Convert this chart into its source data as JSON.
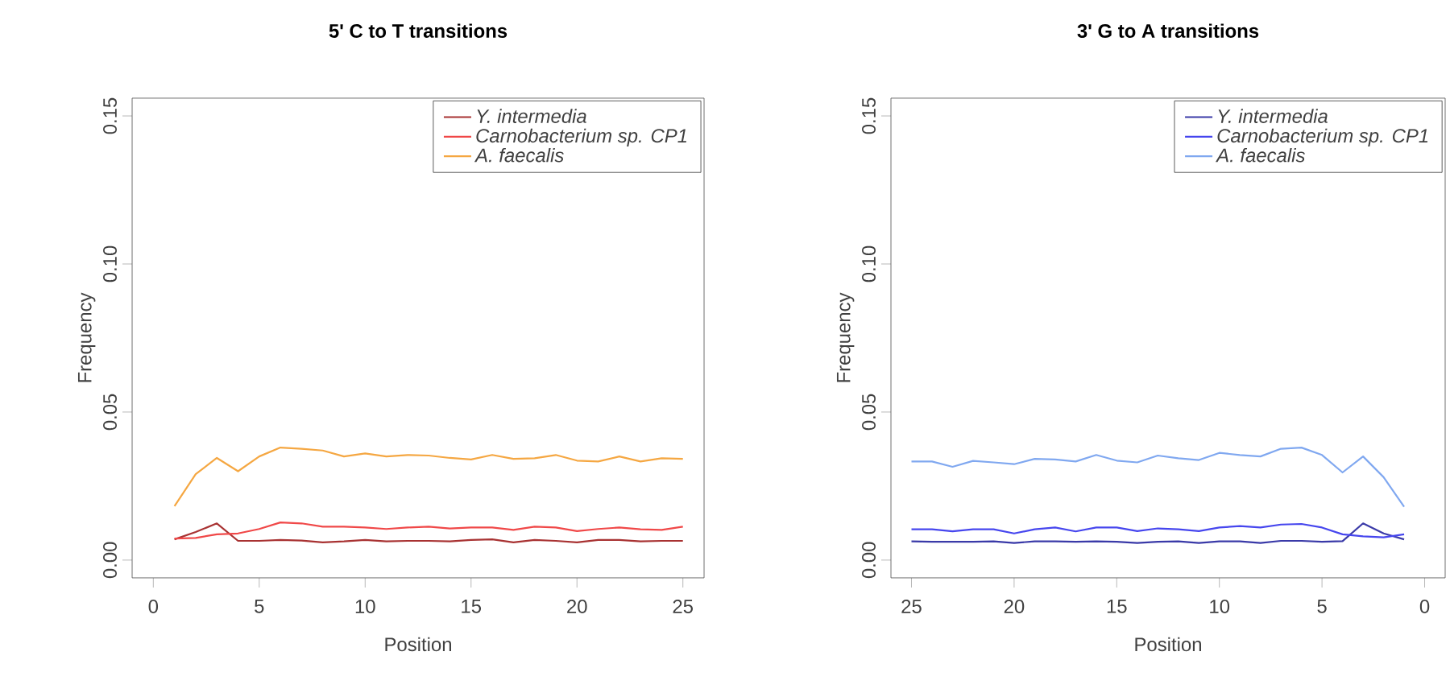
{
  "chart_data": [
    {
      "type": "line",
      "title": "5' C to T transitions",
      "xlabel": "Position",
      "ylabel": "Frequency",
      "x": [
        1,
        2,
        3,
        4,
        5,
        6,
        7,
        8,
        9,
        10,
        11,
        12,
        13,
        14,
        15,
        16,
        17,
        18,
        19,
        20,
        21,
        22,
        23,
        24,
        25
      ],
      "series": [
        {
          "name": "Y. intermedia",
          "color": "#a83232",
          "values": [
            0.007,
            0.0095,
            0.0124,
            0.0065,
            0.0065,
            0.0068,
            0.0066,
            0.006,
            0.0063,
            0.0068,
            0.0063,
            0.0065,
            0.0065,
            0.0063,
            0.0068,
            0.007,
            0.006,
            0.0068,
            0.0065,
            0.006,
            0.0068,
            0.0068,
            0.0063,
            0.0065,
            0.0065
          ]
        },
        {
          "name": "Carnobacterium sp. CP1",
          "color": "#f04848",
          "values": [
            0.0073,
            0.0075,
            0.0087,
            0.009,
            0.0105,
            0.0127,
            0.0124,
            0.0113,
            0.0113,
            0.011,
            0.0105,
            0.011,
            0.0113,
            0.0107,
            0.011,
            0.011,
            0.0102,
            0.0113,
            0.011,
            0.0098,
            0.0105,
            0.011,
            0.0104,
            0.0102,
            0.0113
          ]
        },
        {
          "name": "A. faecalis",
          "color": "#f5a742",
          "values": [
            0.0182,
            0.029,
            0.0345,
            0.03,
            0.035,
            0.038,
            0.0376,
            0.037,
            0.035,
            0.036,
            0.035,
            0.0355,
            0.0353,
            0.0345,
            0.034,
            0.0355,
            0.0342,
            0.0344,
            0.0355,
            0.0336,
            0.0333,
            0.035,
            0.0333,
            0.0344,
            0.0342
          ]
        }
      ],
      "xlim": [
        -1,
        26
      ],
      "ylim": [
        -0.006,
        0.156
      ],
      "xticks": [
        0,
        5,
        10,
        15,
        20,
        25
      ],
      "yticks": [
        {
          "value": 0,
          "label": "0.00"
        },
        {
          "value": 0.05,
          "label": "0.05"
        },
        {
          "value": 0.1,
          "label": "0.10"
        },
        {
          "value": 0.15,
          "label": "0.15"
        }
      ],
      "legend": "top right"
    },
    {
      "type": "line",
      "title": "3' G to A transitions",
      "xlabel": "Position",
      "ylabel": "Frequency",
      "x": [
        25,
        24,
        23,
        22,
        21,
        20,
        19,
        18,
        17,
        16,
        15,
        14,
        13,
        12,
        11,
        10,
        9,
        8,
        7,
        6,
        5,
        4,
        3,
        2,
        1
      ],
      "series": [
        {
          "name": "Y. intermedia",
          "color": "#3a3aa8",
          "values": [
            0.0063,
            0.0062,
            0.0062,
            0.0062,
            0.0063,
            0.0058,
            0.0063,
            0.0063,
            0.0062,
            0.0063,
            0.0062,
            0.0058,
            0.0062,
            0.0063,
            0.0058,
            0.0063,
            0.0063,
            0.0058,
            0.0065,
            0.0065,
            0.0062,
            0.0064,
            0.0124,
            0.009,
            0.007
          ]
        },
        {
          "name": "Carnobacterium sp. CP1",
          "color": "#4646ee",
          "values": [
            0.0104,
            0.0104,
            0.0097,
            0.0104,
            0.0104,
            0.009,
            0.0104,
            0.011,
            0.0097,
            0.011,
            0.011,
            0.0098,
            0.0107,
            0.0104,
            0.0098,
            0.011,
            0.0115,
            0.011,
            0.012,
            0.0122,
            0.011,
            0.0087,
            0.008,
            0.0077,
            0.0087
          ]
        },
        {
          "name": "A. faecalis",
          "color": "#80a8f0",
          "values": [
            0.0333,
            0.0333,
            0.0315,
            0.0335,
            0.033,
            0.0324,
            0.0342,
            0.034,
            0.0333,
            0.0355,
            0.0336,
            0.033,
            0.0353,
            0.0344,
            0.0338,
            0.0362,
            0.0355,
            0.035,
            0.0376,
            0.038,
            0.0355,
            0.0296,
            0.035,
            0.028,
            0.018
          ]
        }
      ],
      "xlim": [
        26,
        -1
      ],
      "ylim": [
        -0.006,
        0.156
      ],
      "xticks": [
        25,
        20,
        15,
        10,
        5,
        0
      ],
      "yticks": [
        {
          "value": 0,
          "label": "0.00"
        },
        {
          "value": 0.05,
          "label": "0.05"
        },
        {
          "value": 0.1,
          "label": "0.10"
        },
        {
          "value": 0.15,
          "label": "0.15"
        }
      ],
      "legend": "top right"
    }
  ]
}
